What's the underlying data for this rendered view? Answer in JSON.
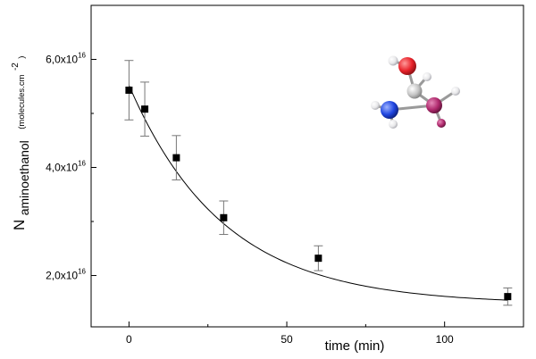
{
  "chart_data": {
    "type": "scatter",
    "title": "",
    "xlabel": "time (min)",
    "ylabel": {
      "main": "N",
      "subscript": "aminoethanol",
      "unit": "(molecules.cm",
      "unit_exponent": "-2",
      "unit_close": ")"
    },
    "xlim": [
      -12,
      125
    ],
    "ylim": [
      1.05e+16,
      7e+16
    ],
    "x_ticks": [
      {
        "value": 0,
        "label": "0"
      },
      {
        "value": 50,
        "label": "50"
      },
      {
        "value": 100,
        "label": "100"
      }
    ],
    "y_ticks": [
      {
        "value": 2e+16,
        "mantissa": "2,0x10",
        "exp": "16"
      },
      {
        "value": 4e+16,
        "mantissa": "4,0x10",
        "exp": "16"
      },
      {
        "value": 6e+16,
        "mantissa": "6,0x10",
        "exp": "16"
      }
    ],
    "grid": false,
    "series": [
      {
        "marker": "square",
        "color": "#000000",
        "points": [
          {
            "x": 0,
            "y": 5.43e+16,
            "err": 5500000000000000.0
          },
          {
            "x": 5,
            "y": 5.08e+16,
            "err": 5000000000000000.0
          },
          {
            "x": 15,
            "y": 4.18e+16,
            "err": 4100000000000000.0
          },
          {
            "x": 30,
            "y": 3.07e+16,
            "err": 3100000000000000.0
          },
          {
            "x": 60,
            "y": 2.32e+16,
            "err": 2300000000000000.0
          },
          {
            "x": 120,
            "y": 1.61e+16,
            "err": 1600000000000000.0
          }
        ]
      }
    ],
    "fit": {
      "type": "exponential_decay",
      "y0": 1.47e+16,
      "A": 4.05e+16,
      "tau": 30,
      "x_range": [
        0,
        120
      ],
      "color": "#000000"
    },
    "molecule_colors": {
      "oxygen": "#e8222a",
      "nitrogen": "#1f45e0",
      "carbon": "#c4c4c4",
      "hydrogen": "#e8e8ea",
      "highlight": "#b02a6e"
    }
  }
}
